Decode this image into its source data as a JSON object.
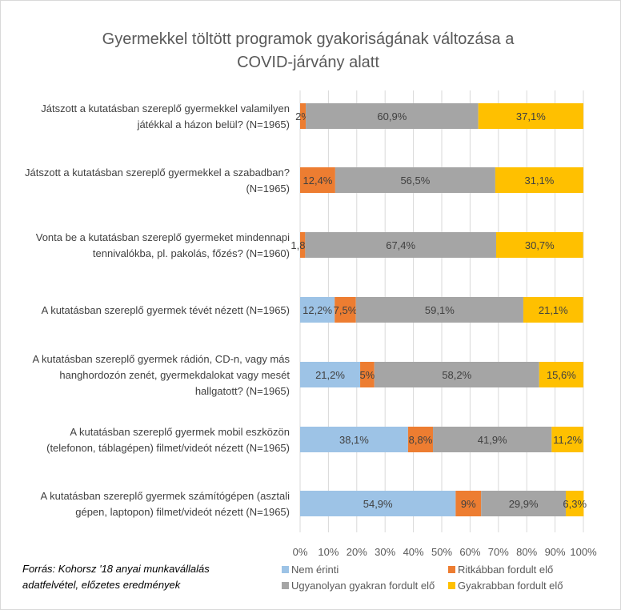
{
  "chart_data": {
    "type": "bar",
    "orientation": "horizontal",
    "stacked": "percent",
    "title": [
      "Gyermekkel töltött programok gyakoriságának változása a",
      "COVID-járvány alatt"
    ],
    "categories": [
      [
        "Játszott a kutatásban szereplő gyermekkel valamilyen",
        "játékkal a házon belül? (N=1965)"
      ],
      [
        "Játszott a kutatásban szereplő gyermekkel a szabadban?",
        "(N=1965)"
      ],
      [
        "Vonta be a kutatásban szereplő gyermeket mindennapi",
        "tennivalókba, pl. pakolás, főzés? (N=1960)"
      ],
      [
        "A kutatásban szereplő gyermek tévét nézett (N=1965)"
      ],
      [
        "A kutatásban szereplő gyermek rádión, CD-n, vagy más",
        "hanghordozón zenét, gyermekdalokat vagy mesét",
        "hallgatott? (N=1965)"
      ],
      [
        "A kutatásban szereplő gyermek mobil eszközön",
        "(telefonon, táblagépen) filmet/videót nézett (N=1965)"
      ],
      [
        "A kutatásban szereplő gyermek számítógépen (asztali",
        "gépen, laptopon) filmet/videót nézett (N=1965)"
      ]
    ],
    "series": [
      {
        "name": "Nem érinti",
        "color": "#9DC3E6",
        "values": [
          0,
          0,
          0,
          12.2,
          21.2,
          38.1,
          54.9
        ],
        "labels": [
          "",
          "",
          "",
          "12,2%",
          "21,2%",
          "38,1%",
          "54,9%"
        ]
      },
      {
        "name": "Ritkábban fordult elő",
        "color": "#ED7D31",
        "values": [
          2,
          12.4,
          1.8,
          7.5,
          5,
          8.8,
          9
        ],
        "labels": [
          "2%",
          "12,4%",
          "1,8%",
          "7,5%",
          "5%",
          "8,8%",
          "9%"
        ]
      },
      {
        "name": "Ugyanolyan gyakran fordult elő",
        "color": "#A5A5A5",
        "values": [
          60.9,
          56.5,
          67.4,
          59.1,
          58.2,
          41.9,
          29.9
        ],
        "labels": [
          "60,9%",
          "56,5%",
          "67,4%",
          "59,1%",
          "58,2%",
          "41,9%",
          "29,9%"
        ]
      },
      {
        "name": "Gyakrabban fordult elő",
        "color": "#FFC000",
        "values": [
          37.1,
          31.1,
          30.7,
          21.1,
          15.6,
          11.2,
          6.3
        ],
        "labels": [
          "37,1%",
          "31,1%",
          "30,7%",
          "21,1%",
          "15,6%",
          "11,2%",
          "6,3%"
        ]
      }
    ],
    "xlim": [
      0,
      100
    ],
    "xticks": [
      "0%",
      "10%",
      "20%",
      "30%",
      "40%",
      "50%",
      "60%",
      "70%",
      "80%",
      "90%",
      "100%"
    ],
    "grid": true,
    "legend_position": "bottom"
  },
  "source": [
    "Forrás: Kohorsz '18 anyai munkavállalás",
    "adatfelvétel, előzetes eredmények"
  ]
}
